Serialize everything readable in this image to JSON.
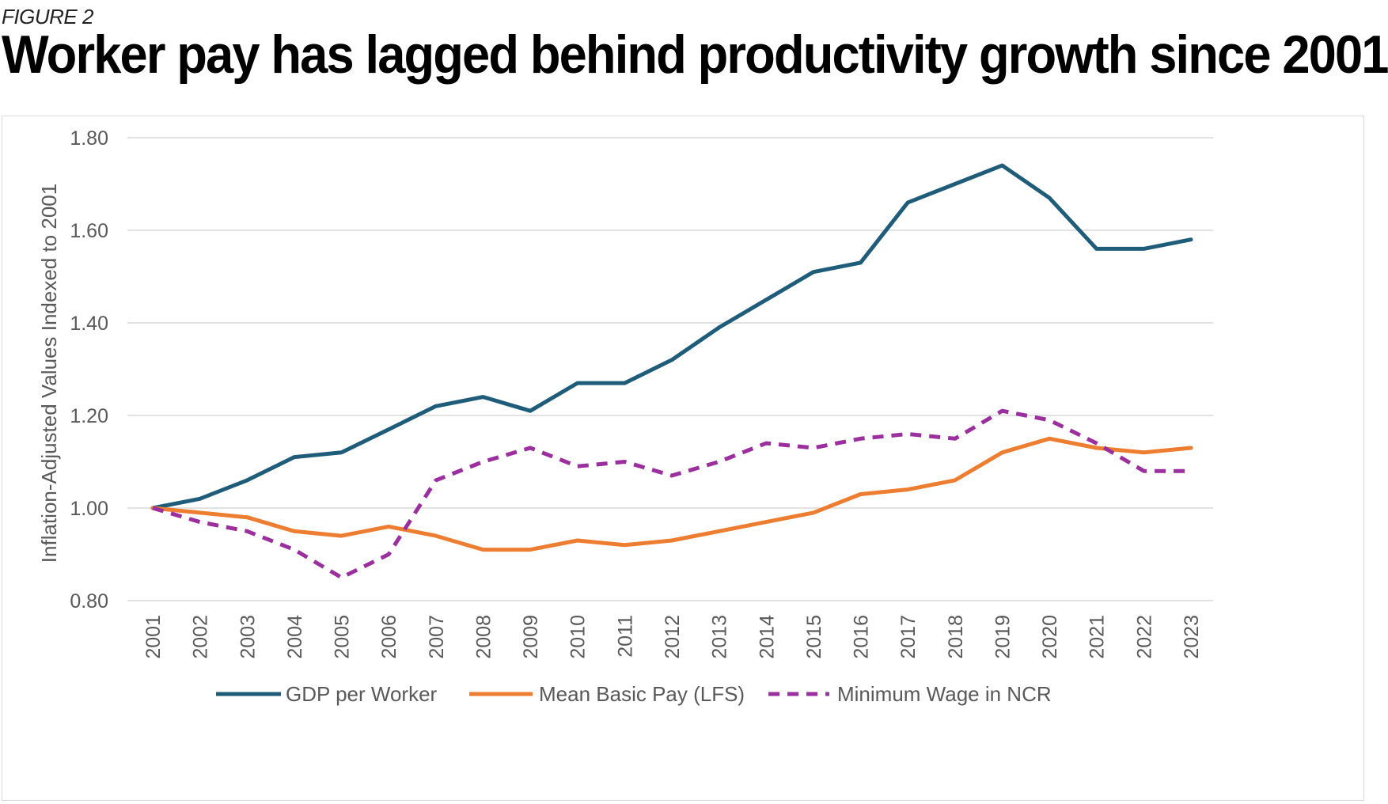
{
  "figure_label": "FIGURE 2",
  "title": "Worker pay has lagged behind productivity growth since 2001",
  "chart_data": {
    "type": "line",
    "title": "Worker pay has lagged behind productivity growth since 2001",
    "xlabel": "",
    "ylabel": "Inflation-Adjusted Values Indexed to 2001",
    "ylim": [
      0.8,
      1.8
    ],
    "yticks": [
      "0.80",
      "1.00",
      "1.20",
      "1.40",
      "1.60",
      "1.80"
    ],
    "grid": "horizontal",
    "legend_position": "bottom",
    "x": [
      "2001",
      "2002",
      "2003",
      "2004",
      "2005",
      "2006",
      "2007",
      "2008",
      "2009",
      "2010",
      "2011",
      "2012",
      "2013",
      "2014",
      "2015",
      "2016",
      "2017",
      "2018",
      "2019",
      "2020",
      "2021",
      "2022",
      "2023"
    ],
    "series": [
      {
        "name": "GDP per Worker",
        "color": "#1f5c7a",
        "style": "solid",
        "values": [
          1.0,
          1.02,
          1.06,
          1.11,
          1.12,
          1.17,
          1.22,
          1.24,
          1.21,
          1.27,
          1.27,
          1.32,
          1.39,
          1.45,
          1.51,
          1.53,
          1.66,
          1.7,
          1.74,
          1.67,
          1.56,
          1.56,
          1.58
        ]
      },
      {
        "name": "Mean Basic Pay (LFS)",
        "color": "#ed7d31",
        "style": "solid",
        "values": [
          1.0,
          0.99,
          0.98,
          0.95,
          0.94,
          0.96,
          0.94,
          0.91,
          0.91,
          0.93,
          0.92,
          0.93,
          0.95,
          0.97,
          0.99,
          1.03,
          1.04,
          1.06,
          1.12,
          1.15,
          1.13,
          1.12,
          1.13
        ]
      },
      {
        "name": "Minimum Wage in NCR",
        "color": "#9b2f9e",
        "style": "dashed",
        "values": [
          1.0,
          0.97,
          0.95,
          0.91,
          0.85,
          0.9,
          1.06,
          1.1,
          1.13,
          1.09,
          1.1,
          1.07,
          1.1,
          1.14,
          1.13,
          1.15,
          1.16,
          1.15,
          1.21,
          1.19,
          1.14,
          1.08,
          1.08
        ]
      }
    ]
  }
}
